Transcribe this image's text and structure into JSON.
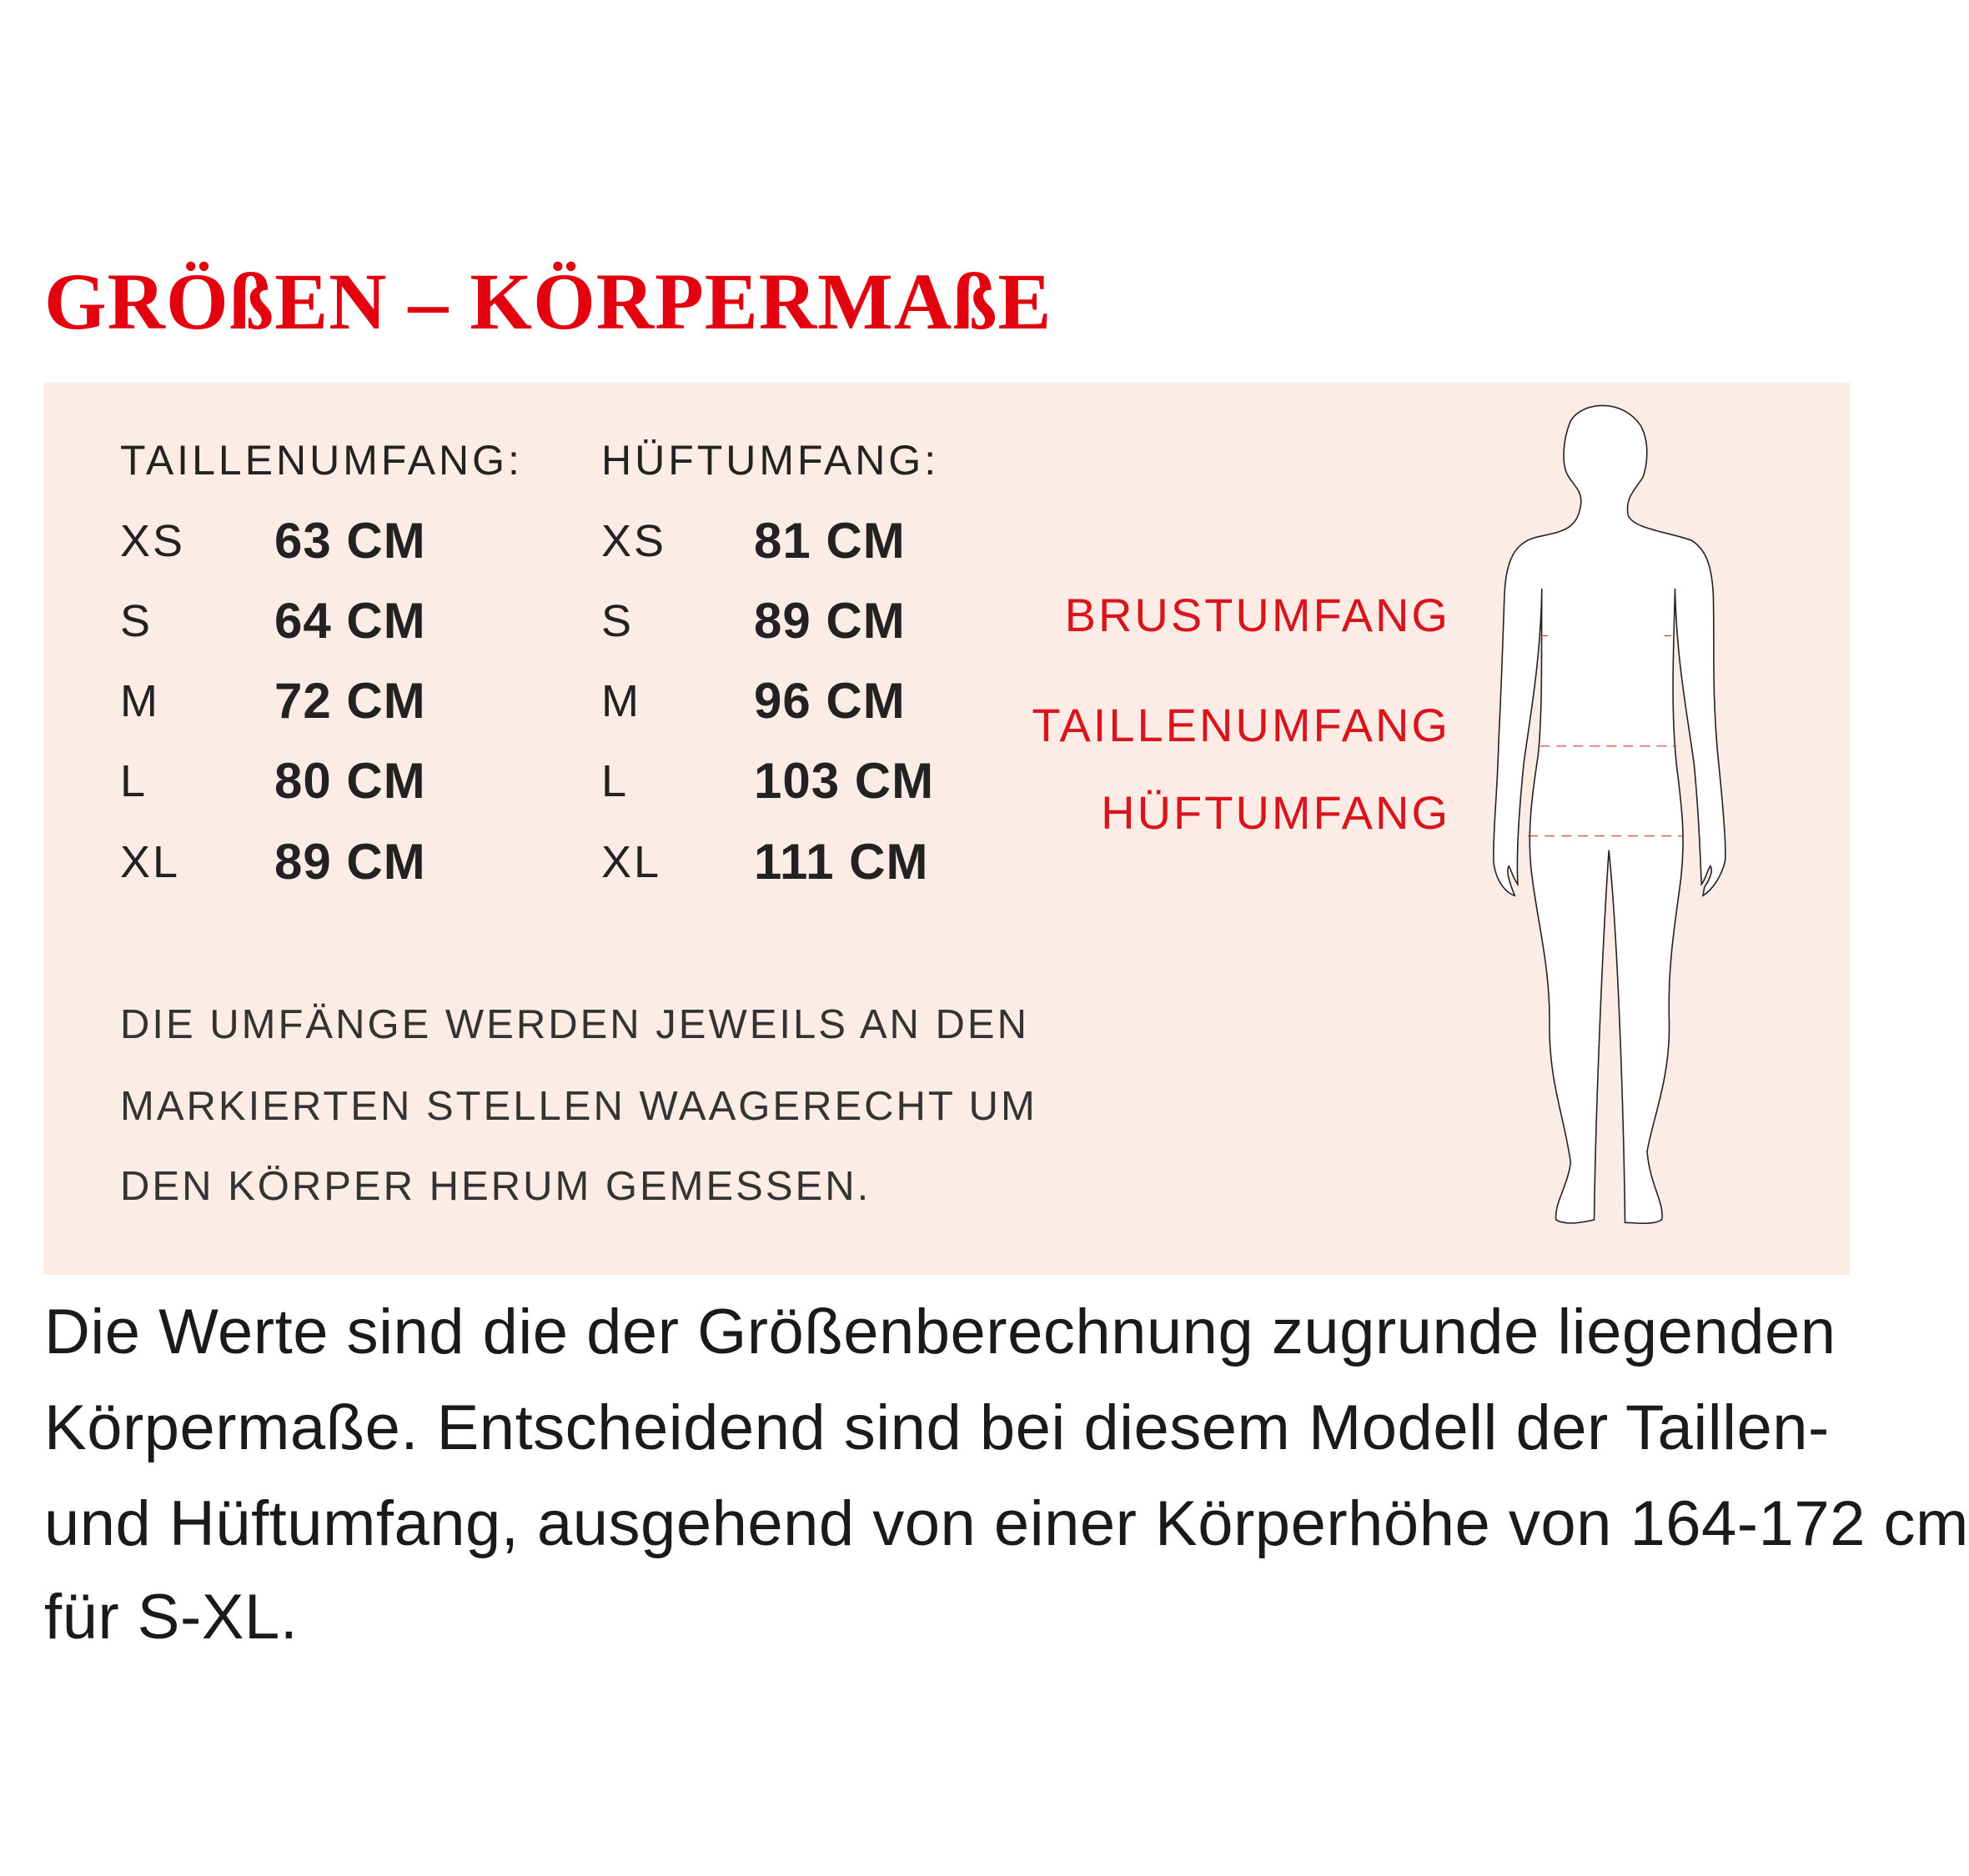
{
  "title": "GRÖßEN – KÖRPERMAßE",
  "waist": {
    "header": "TAILLENUMFANG:",
    "rows": [
      {
        "size": "XS",
        "value": "63 CM"
      },
      {
        "size": "S",
        "value": "64 CM"
      },
      {
        "size": "M",
        "value": "72 CM"
      },
      {
        "size": "L",
        "value": "80 CM"
      },
      {
        "size": "XL",
        "value": "89 CM"
      }
    ]
  },
  "hip": {
    "header": "HÜFTUMFANG:",
    "rows": [
      {
        "size": "XS",
        "value": "81 CM"
      },
      {
        "size": "S",
        "value": "89 CM"
      },
      {
        "size": "M",
        "value": "96 CM"
      },
      {
        "size": "L",
        "value": "103 CM"
      },
      {
        "size": "XL",
        "value": "111 CM"
      }
    ]
  },
  "note_lines": [
    "DIE UMFÄNGE WERDEN JEWEILS AN DEN",
    "MARKIERTEN STELLEN WAAGERECHT UM",
    "DEN KÖRPER HERUM GEMESSEN."
  ],
  "figure_labels": {
    "chest": "BRUSTUMFANG",
    "waist": "TAILLENUMFANG",
    "hip": "HÜFTUMFANG"
  },
  "paragraph_lines": [
    "Die Werte sind die der Größenberechnung zugrunde liegenden",
    "Körpermaße. Entscheidend sind bei diesem Modell der Taillen-",
    "und Hüftumfang, ausgehend von einer Körperhöhe von 164-172 cm",
    "für S-XL."
  ],
  "colors": {
    "accent": "#e3000f",
    "panel": "#fdebe5"
  }
}
